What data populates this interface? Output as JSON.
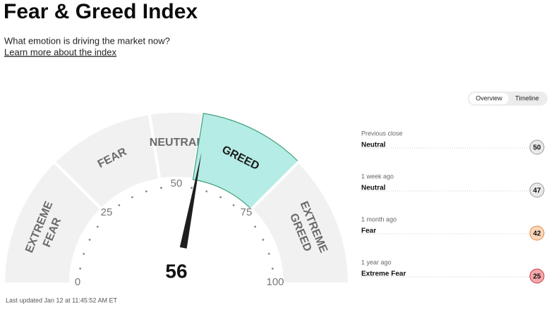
{
  "header": {
    "title": "Fear & Greed Index",
    "subtitle": "What emotion is driving the market now?",
    "link": "Learn more about the index"
  },
  "tabs": [
    "Overview",
    "Timeline"
  ],
  "chart_data": {
    "type": "gauge",
    "value": 56,
    "range": [
      0,
      100
    ],
    "ticks": [
      0,
      25,
      50,
      75,
      100
    ],
    "tick_step": 5,
    "segments": [
      {
        "lines": [
          "EXTREME",
          "FEAR"
        ],
        "from": 0,
        "to": 25
      },
      {
        "lines": [
          "FEAR"
        ],
        "from": 25,
        "to": 45
      },
      {
        "lines": [
          "NEUTRAL"
        ],
        "from": 45,
        "to": 55
      },
      {
        "lines": [
          "GREED"
        ],
        "from": 55,
        "to": 75
      },
      {
        "lines": [
          "EXTREME",
          "GREED"
        ],
        "from": 75,
        "to": 100
      }
    ],
    "color": "#f1f1f1",
    "active_color": "#b5ece5"
  },
  "history": [
    {
      "period": "Previous close",
      "rating": "Neutral",
      "value": 50
    },
    {
      "period": "1 week ago",
      "rating": "Neutral",
      "value": 47
    },
    {
      "period": "1 month ago",
      "rating": "Fear",
      "value": 42
    },
    {
      "period": "1 year ago",
      "rating": "Extreme Fear",
      "value": 25
    }
  ],
  "footer": "Last updated Jan 12 at 11:45:52 AM ET"
}
